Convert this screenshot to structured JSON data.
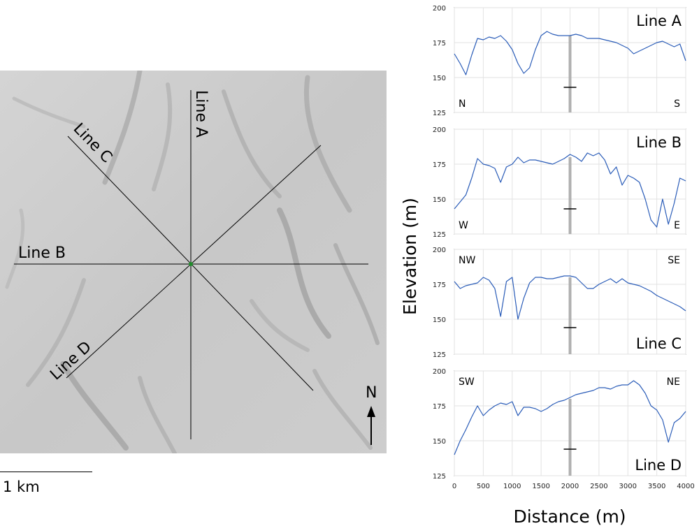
{
  "map": {
    "line_labels": [
      "Line A",
      "Line B",
      "Line C",
      "Line D"
    ],
    "north_label": "N",
    "scale_label": "1 km"
  },
  "axes": {
    "ylabel": "Elevation (m)",
    "xlabel": "Distance (m)",
    "xlim": [
      0,
      4000
    ],
    "ylim": [
      125,
      200
    ],
    "xticks": [
      0,
      500,
      1000,
      1500,
      2000,
      2500,
      3000,
      3500,
      4000
    ],
    "yticks": [
      125,
      150,
      175,
      200
    ]
  },
  "colors": {
    "profile": "#2a5cb8",
    "marker": "#b0b0b0"
  },
  "chart_data": [
    {
      "type": "line",
      "title": "Line A",
      "start_label": "N",
      "end_label": "S",
      "xlim": [
        0,
        4000
      ],
      "ylim": [
        125,
        200
      ],
      "marker_x": 2000,
      "marker_y": 143,
      "series": [
        {
          "x": [
            0,
            100,
            200,
            300,
            400,
            500,
            600,
            700,
            800,
            900,
            1000,
            1100,
            1200,
            1300,
            1400,
            1500,
            1600,
            1700,
            1800,
            1900,
            2000,
            2100,
            2200,
            2300,
            2400,
            2500,
            2600,
            2700,
            2800,
            2900,
            3000,
            3100,
            3200,
            3300,
            3400,
            3500,
            3600,
            3700,
            3800,
            3900,
            4000
          ],
          "y": [
            167,
            160,
            152,
            166,
            178,
            177,
            179,
            178,
            180,
            176,
            170,
            160,
            153,
            157,
            170,
            180,
            183,
            181,
            180,
            180,
            180,
            181,
            180,
            178,
            178,
            178,
            177,
            176,
            175,
            173,
            171,
            167,
            169,
            171,
            173,
            175,
            176,
            174,
            172,
            174,
            162
          ]
        }
      ]
    },
    {
      "type": "line",
      "title": "Line B",
      "start_label": "W",
      "end_label": "E",
      "xlim": [
        0,
        4000
      ],
      "ylim": [
        125,
        200
      ],
      "marker_x": 2000,
      "marker_y": 143,
      "series": [
        {
          "x": [
            0,
            100,
            200,
            300,
            400,
            500,
            600,
            700,
            800,
            900,
            1000,
            1100,
            1200,
            1300,
            1400,
            1500,
            1600,
            1700,
            1800,
            1900,
            2000,
            2100,
            2200,
            2300,
            2400,
            2500,
            2600,
            2700,
            2800,
            2900,
            3000,
            3100,
            3200,
            3300,
            3400,
            3500,
            3600,
            3700,
            3800,
            3900,
            4000
          ],
          "y": [
            143,
            148,
            153,
            165,
            179,
            175,
            174,
            172,
            162,
            173,
            175,
            180,
            176,
            178,
            178,
            177,
            176,
            175,
            177,
            179,
            182,
            180,
            177,
            183,
            181,
            183,
            178,
            168,
            173,
            160,
            167,
            165,
            162,
            150,
            135,
            130,
            150,
            132,
            147,
            165,
            163
          ]
        }
      ]
    },
    {
      "type": "line",
      "title": "Line C",
      "start_label": "NW",
      "end_label": "SE",
      "xlim": [
        0,
        4000
      ],
      "ylim": [
        125,
        200
      ],
      "marker_x": 2000,
      "marker_y": 144,
      "series": [
        {
          "x": [
            0,
            100,
            200,
            300,
            400,
            500,
            600,
            700,
            800,
            900,
            1000,
            1100,
            1200,
            1300,
            1400,
            1500,
            1600,
            1700,
            1800,
            1900,
            2000,
            2100,
            2200,
            2300,
            2400,
            2500,
            2600,
            2700,
            2800,
            2900,
            3000,
            3100,
            3200,
            3300,
            3400,
            3500,
            3600,
            3700,
            3800,
            3900,
            4000
          ],
          "y": [
            177,
            172,
            174,
            175,
            176,
            180,
            178,
            172,
            152,
            177,
            180,
            150,
            165,
            176,
            180,
            180,
            179,
            179,
            180,
            181,
            181,
            180,
            176,
            172,
            172,
            175,
            177,
            179,
            176,
            179,
            176,
            175,
            174,
            172,
            170,
            167,
            165,
            163,
            161,
            159,
            156
          ]
        }
      ]
    },
    {
      "type": "line",
      "title": "Line D",
      "start_label": "SW",
      "end_label": "NE",
      "xlim": [
        0,
        4000
      ],
      "ylim": [
        125,
        200
      ],
      "marker_x": 2000,
      "marker_y": 144,
      "series": [
        {
          "x": [
            0,
            100,
            200,
            300,
            400,
            500,
            600,
            700,
            800,
            900,
            1000,
            1100,
            1200,
            1300,
            1400,
            1500,
            1600,
            1700,
            1800,
            1900,
            2000,
            2100,
            2200,
            2300,
            2400,
            2500,
            2600,
            2700,
            2800,
            2900,
            3000,
            3100,
            3200,
            3300,
            3400,
            3500,
            3600,
            3700,
            3800,
            3900,
            4000
          ],
          "y": [
            140,
            150,
            158,
            167,
            175,
            168,
            172,
            175,
            177,
            176,
            178,
            168,
            174,
            174,
            173,
            171,
            173,
            176,
            178,
            179,
            181,
            183,
            184,
            185,
            186,
            188,
            188,
            187,
            189,
            190,
            190,
            193,
            190,
            184,
            175,
            172,
            165,
            149,
            163,
            166,
            171
          ]
        }
      ]
    }
  ]
}
